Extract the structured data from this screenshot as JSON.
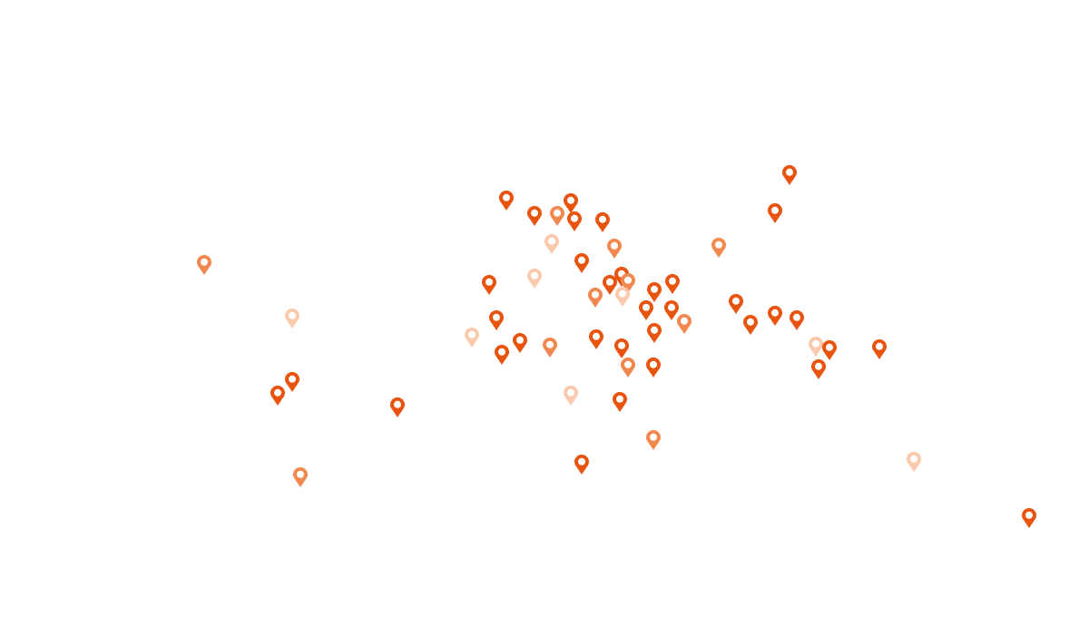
{
  "map": {
    "background": "#ffffff",
    "colors": {
      "dark": "#e8530e",
      "medium": "#f0884f",
      "light": "#fbc9ac"
    },
    "markers": [
      {
        "shade": "dark"
      },
      {
        "shade": "dark"
      },
      {
        "shade": "dark"
      },
      {
        "shade": "medium"
      },
      {
        "shade": "dark"
      },
      {
        "shade": "dark"
      },
      {
        "shade": "dark"
      },
      {
        "shade": "dark"
      },
      {
        "shade": "light"
      },
      {
        "shade": "medium"
      },
      {
        "shade": "medium"
      },
      {
        "shade": "medium"
      },
      {
        "shade": "dark"
      },
      {
        "shade": "light"
      },
      {
        "shade": "dark"
      },
      {
        "shade": "dark"
      },
      {
        "shade": "dark"
      },
      {
        "shade": "medium"
      },
      {
        "shade": "dark"
      },
      {
        "shade": "dark"
      },
      {
        "shade": "medium"
      },
      {
        "shade": "light"
      },
      {
        "shade": "dark"
      },
      {
        "shade": "dark"
      },
      {
        "shade": "medium"
      },
      {
        "shade": "dark"
      },
      {
        "shade": "dark"
      },
      {
        "shade": "dark"
      },
      {
        "shade": "dark"
      },
      {
        "shade": "light"
      },
      {
        "shade": "dark"
      },
      {
        "shade": "light"
      },
      {
        "shade": "dark"
      },
      {
        "shade": "dark"
      },
      {
        "shade": "medium"
      },
      {
        "shade": "dark"
      },
      {
        "shade": "dark"
      },
      {
        "shade": "dark"
      },
      {
        "shade": "light"
      },
      {
        "shade": "dark"
      },
      {
        "shade": "dark"
      },
      {
        "shade": "dark"
      },
      {
        "shade": "medium"
      },
      {
        "shade": "dark"
      },
      {
        "shade": "dark"
      },
      {
        "shade": "dark"
      },
      {
        "shade": "dark"
      },
      {
        "shade": "light"
      },
      {
        "shade": "dark"
      },
      {
        "shade": "medium"
      },
      {
        "shade": "dark"
      },
      {
        "shade": "medium"
      },
      {
        "shade": "light"
      },
      {
        "shade": "dark"
      }
    ],
    "marker_icon": "map-pin-icon"
  }
}
